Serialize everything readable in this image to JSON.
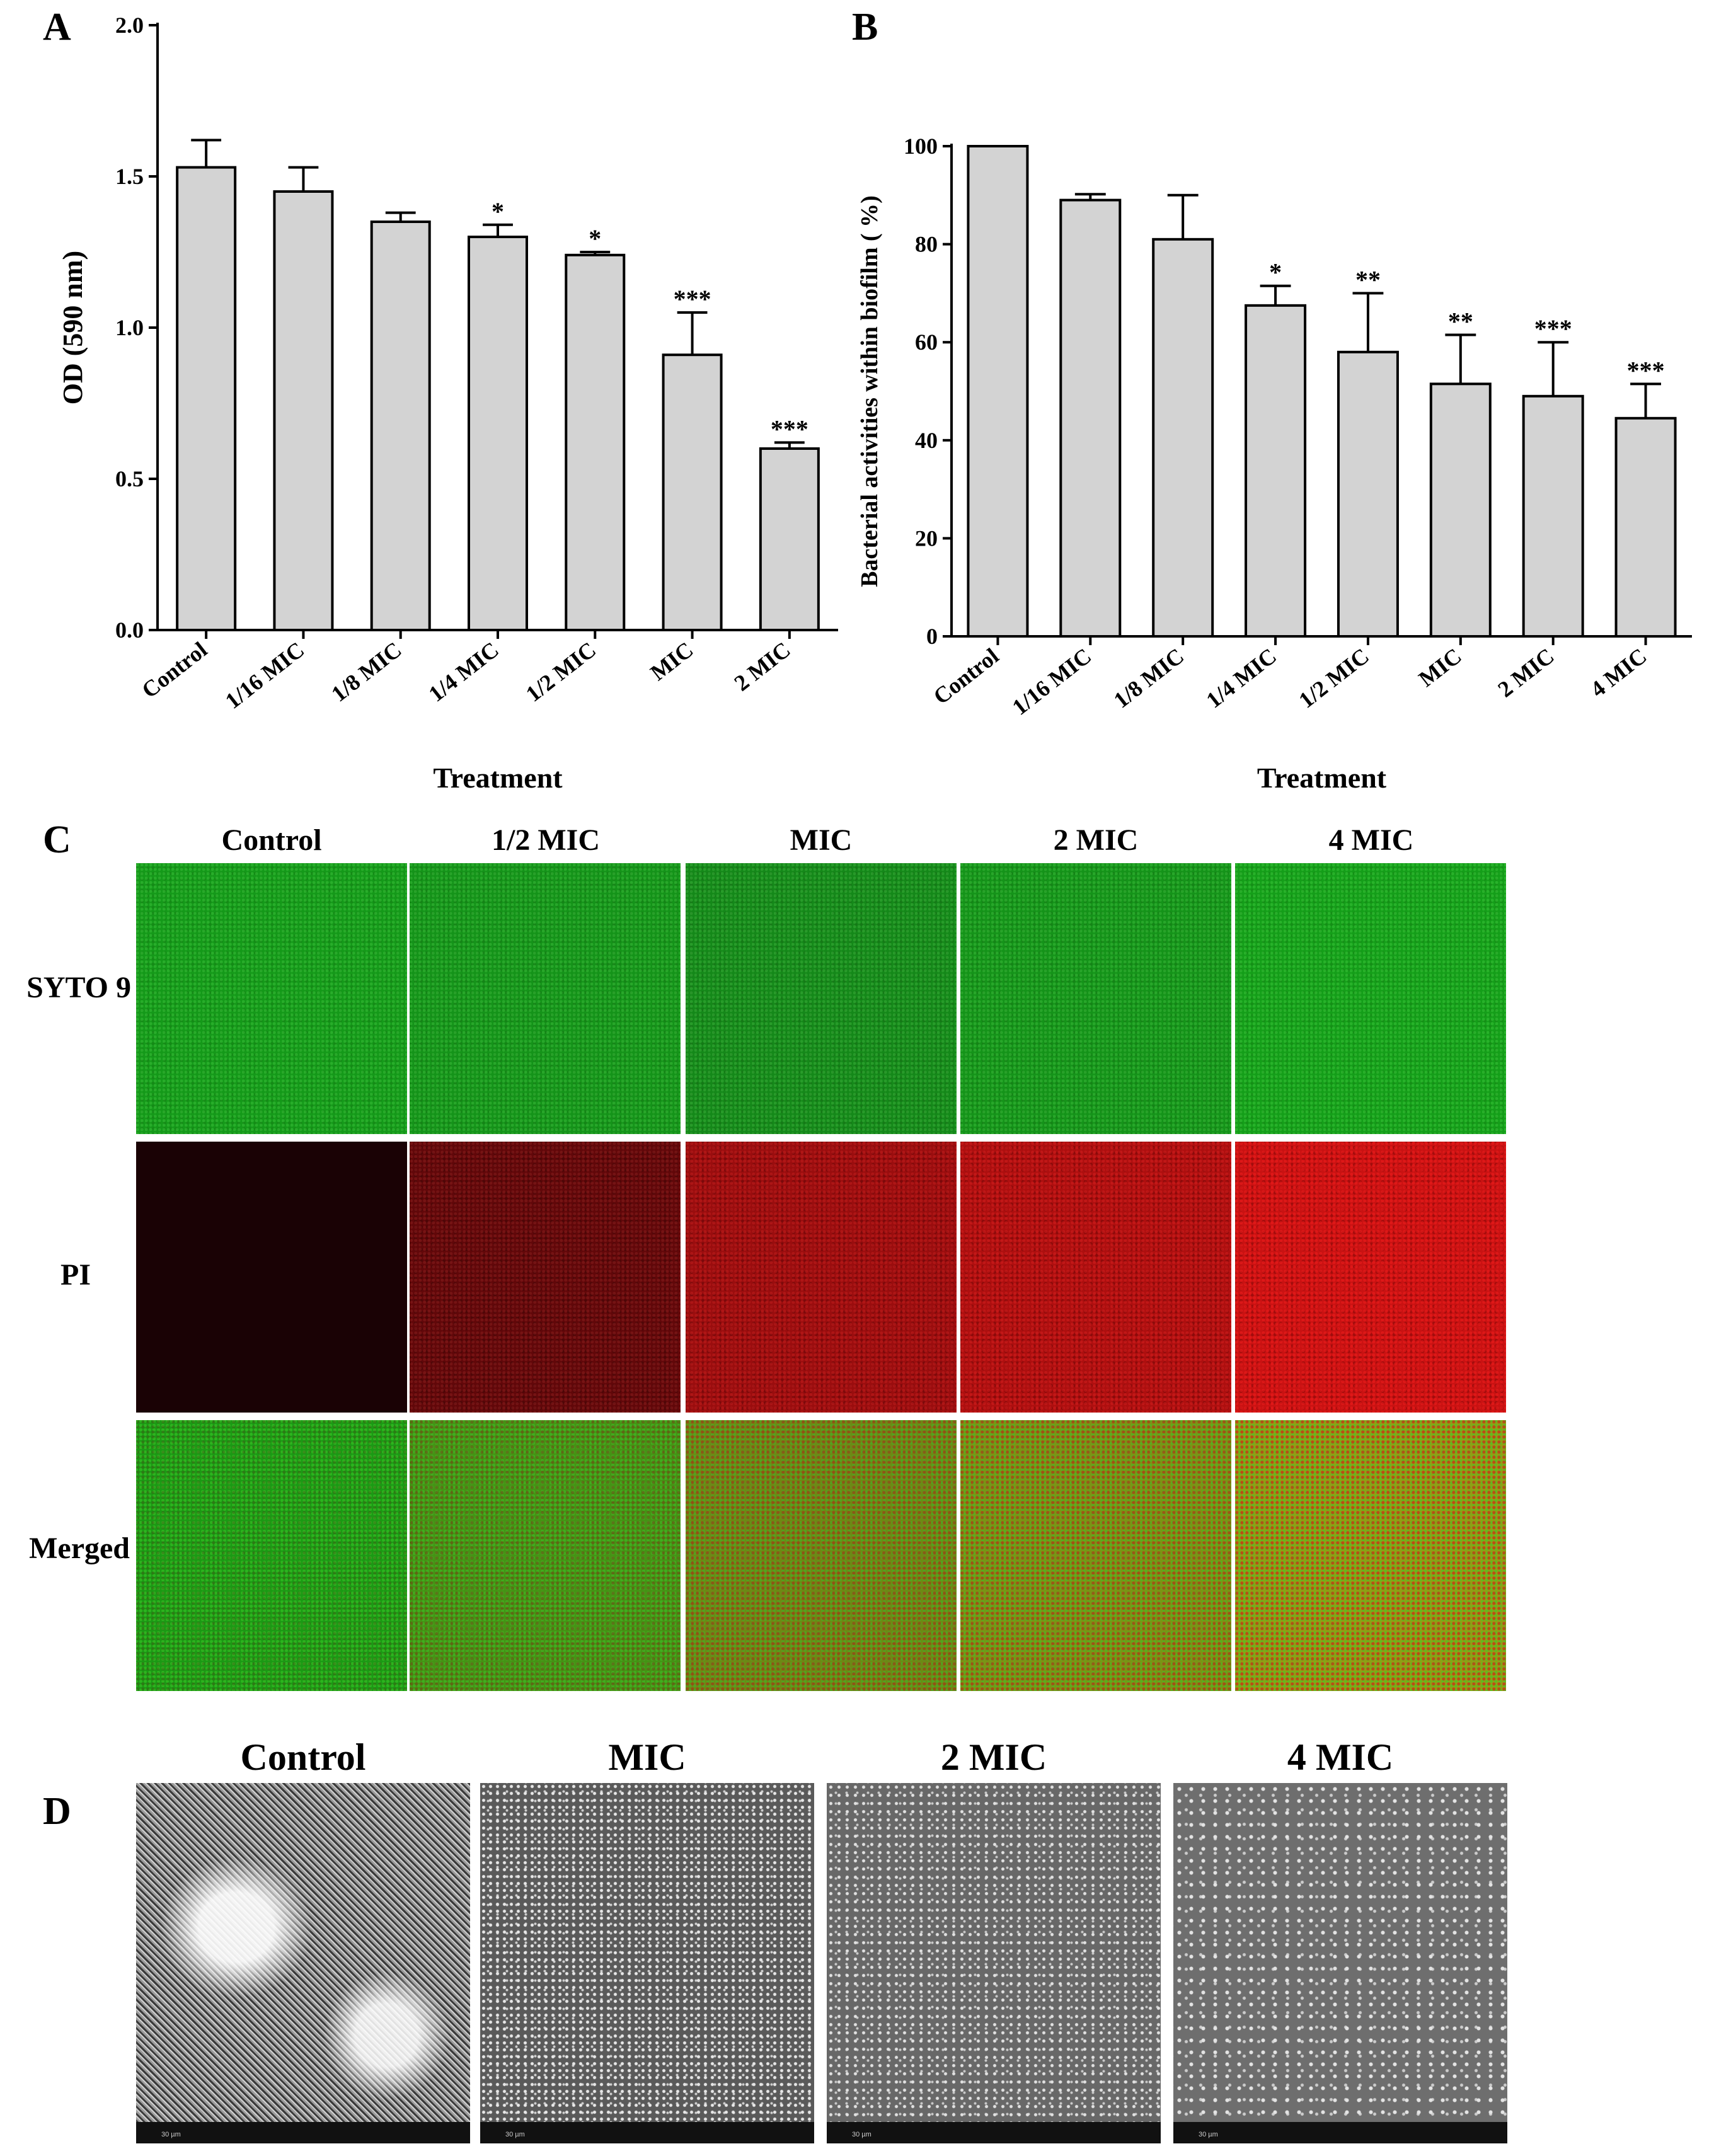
{
  "panels": {
    "a_letter": "A",
    "b_letter": "B",
    "c_letter": "C",
    "d_letter": "D"
  },
  "chart_data": [
    {
      "panel": "A",
      "type": "bar",
      "categories": [
        "Control",
        "1/16 MIC",
        "1/8 MIC",
        "1/4 MIC",
        "1/2 MIC",
        "MIC",
        "2 MIC"
      ],
      "values": [
        1.53,
        1.45,
        1.35,
        1.3,
        1.24,
        0.91,
        0.6
      ],
      "errors": [
        0.09,
        0.08,
        0.03,
        0.04,
        0.01,
        0.14,
        0.02
      ],
      "significance": [
        "",
        "",
        "",
        "*",
        "*",
        "***",
        "***"
      ],
      "xlabel": "Treatment",
      "ylabel": "OD (590 nm)",
      "ylim": [
        0,
        2.0
      ],
      "yticks": [
        "0.0",
        "0.5",
        "1.0",
        "1.5",
        "2.0"
      ],
      "bar_color": "#d3d3d3"
    },
    {
      "panel": "B",
      "type": "bar",
      "categories": [
        "Control",
        "1/16 MIC",
        "1/8 MIC",
        "1/4 MIC",
        "1/2 MIC",
        "MIC",
        "2 MIC",
        "4 MIC"
      ],
      "values": [
        100,
        89,
        81,
        67.5,
        58,
        51.5,
        49,
        44.5
      ],
      "errors": [
        0,
        1.2,
        9,
        4,
        12,
        10,
        11,
        7
      ],
      "significance": [
        "",
        "",
        "",
        "*",
        "**",
        "**",
        "***",
        "***"
      ],
      "xlabel": "Treatment",
      "ylabel": "Bacterial activities within biofilm ( %)",
      "ylim": [
        0,
        100
      ],
      "yticks": [
        "0",
        "20",
        "40",
        "60",
        "80",
        "100"
      ],
      "bar_color": "#d3d3d3"
    }
  ],
  "confocal": {
    "columns": [
      "Control",
      "1/2 MIC",
      "MIC",
      "2 MIC",
      "4 MIC"
    ],
    "rows": [
      "SYTO 9",
      "PI",
      "Merged"
    ],
    "syto_intensity": [
      0.75,
      0.7,
      0.6,
      0.7,
      0.8
    ],
    "pi_intensity": [
      0.05,
      0.35,
      0.65,
      0.75,
      0.9
    ],
    "colors": {
      "green": "#2fae2f",
      "red": "#d51e1e",
      "dark_red": "#1a0205"
    }
  },
  "sem": {
    "columns": [
      "Control",
      "MIC",
      "2 MIC",
      "4 MIC"
    ],
    "scalebar_labels": [
      "30 µm",
      "30 µm",
      "30 µm",
      "30 µm"
    ]
  }
}
